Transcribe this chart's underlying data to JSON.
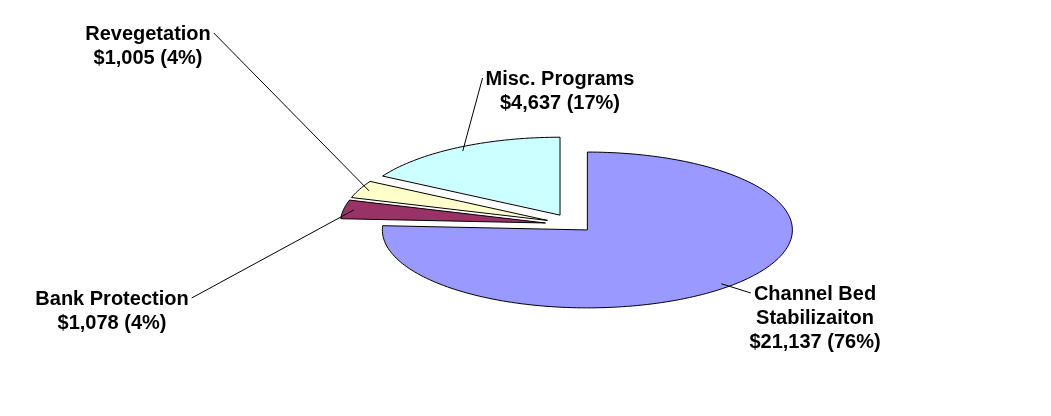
{
  "chart_data": {
    "type": "pie",
    "categories": [
      "Channel Bed Stabilizaiton",
      "Bank Protection",
      "Revegetation",
      "Misc. Programs"
    ],
    "values": [
      21137,
      1078,
      1005,
      4637
    ],
    "value_labels": [
      "$21,137 (76%)",
      "$1,078 (4%)",
      "$1,005 (4%)",
      "$4,637 (17%)"
    ],
    "colors": [
      "#9999ff",
      "#993366",
      "#ffffcc",
      "#ccffff"
    ]
  }
}
